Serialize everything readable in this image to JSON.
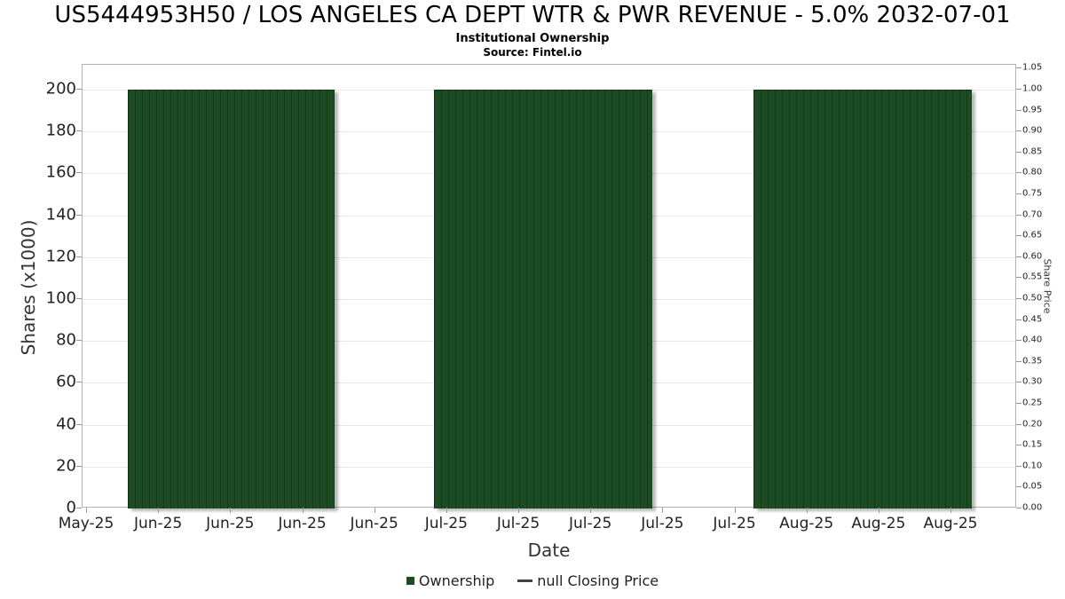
{
  "chart_data": {
    "type": "bar",
    "title": "US5444953H50 / LOS ANGELES CA DEPT WTR & PWR REVENUE - 5.0% 2032-07-01",
    "subtitle": "Institutional Ownership",
    "source": "Source: Fintel.io",
    "x_axis": {
      "label": "Date",
      "tick_labels": [
        "May-25",
        "Jun-25",
        "Jun-25",
        "Jun-25",
        "Jun-25",
        "Jul-25",
        "Jul-25",
        "Jul-25",
        "Jul-25",
        "Jul-25",
        "Aug-25",
        "Aug-25",
        "Aug-25"
      ]
    },
    "y_axis_left": {
      "label": "Shares (x1000)",
      "ticks": [
        0,
        20,
        40,
        60,
        80,
        100,
        120,
        140,
        160,
        180,
        200
      ],
      "range": [
        0,
        212
      ]
    },
    "y_axis_right": {
      "label": "Share Price",
      "ticks": [
        "0.00",
        "0.05",
        "0.10",
        "0.15",
        "0.20",
        "0.25",
        "0.30",
        "0.35",
        "0.40",
        "0.45",
        "0.50",
        "0.55",
        "0.60",
        "0.65",
        "0.70",
        "0.75",
        "0.80",
        "0.85",
        "0.90",
        "0.95",
        "1.00",
        "1.05"
      ],
      "range": [
        0,
        1.12
      ]
    },
    "grid": "horizontal",
    "legend_position": "bottom",
    "series": [
      {
        "name": "Ownership",
        "type": "bar",
        "color": "#1d4b23",
        "value_shares_x1000": 200,
        "segments": [
          {
            "start_frac": 0.048,
            "end_frac": 0.269,
            "value": 200
          },
          {
            "start_frac": 0.376,
            "end_frac": 0.609,
            "value": 200
          },
          {
            "start_frac": 0.718,
            "end_frac": 0.951,
            "value": 200
          }
        ]
      },
      {
        "name": "null Closing Price",
        "type": "line",
        "color": "#444444",
        "values": []
      }
    ],
    "legend": [
      {
        "label": "Ownership",
        "swatch": "square",
        "color": "#1d4b23"
      },
      {
        "label": "null Closing Price",
        "swatch": "dash",
        "color": "#444444"
      }
    ]
  }
}
